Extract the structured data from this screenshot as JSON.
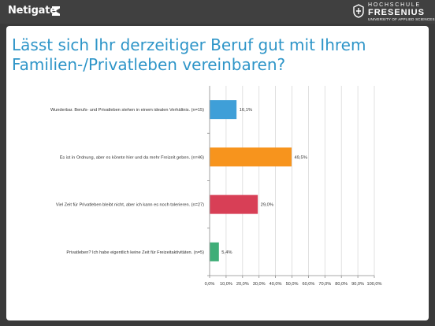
{
  "header": {
    "left_brand": "Netigate",
    "right_brand_line1": "HOCHSCHULE",
    "right_brand_line2": "FRESENIUS",
    "right_brand_line3": "UNIVERSITY OF APPLIED SCIENCES"
  },
  "slide": {
    "title": "Lässt sich Ihr derzeitiger Beruf gut mit Ihrem  Familien-/Privatleben vereinbaren?"
  },
  "chart_data": {
    "type": "bar",
    "orientation": "horizontal",
    "categories": [
      "Wunderbar. Berufs- und Privatleben stehen in einem idealen Verhältnis. (n=15)",
      "Es ist in Ordnung, aber es könnte hier und da mehr Freizeit geben. (n=46)",
      "Viel Zeit für Privatleben bleibt nicht, aber ich kann es noch tolerieren. (n=27)",
      "Privatleben? Ich habe eigentlich keine Zeit für Freizeitaktivitäten. (n=5)"
    ],
    "values": [
      16.1,
      49.5,
      29.0,
      5.4
    ],
    "value_labels": [
      "16,1%",
      "49,5%",
      "29,0%",
      "5,4%"
    ],
    "bar_colors": [
      "#3f9fd8",
      "#f7941d",
      "#d83f56",
      "#3fae78"
    ],
    "x_ticks": [
      "0,0%",
      "10,0%",
      "20,0%",
      "30,0%",
      "40,0%",
      "50,0%",
      "60,0%",
      "70,0%",
      "80,0%",
      "90,0%",
      "100,0%"
    ],
    "xlim": [
      0,
      100
    ],
    "grid": true,
    "legend": "none"
  }
}
